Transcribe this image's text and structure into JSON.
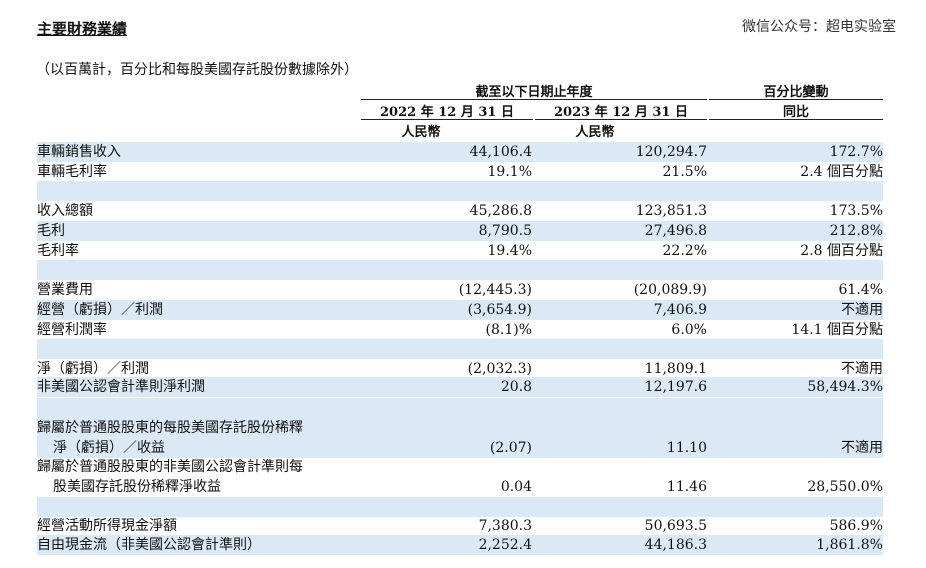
{
  "title": "主要財務業績",
  "watermark": "微信公众号：超电实验室",
  "note": "（以百萬計，百分比和每股美國存託股份數據除外）",
  "header": {
    "period": "截至以下日期止年度",
    "change": "百分比變動",
    "col1_date": "2022 年 12 月 31 日",
    "col2_date": "2023 年 12 月 31 日",
    "col3": "同比",
    "col1_unit": "人民幣",
    "col2_unit": "人民幣"
  },
  "rows": [
    {
      "label": "車輛銷售收入",
      "v1": "44,106.4",
      "v2": "120,294.7",
      "v3": "172.7%"
    },
    {
      "label": "車輛毛利率",
      "v1": "19.1%",
      "v2": "21.5%",
      "v3": "2.4 個百分點"
    },
    {
      "label": "收入總額",
      "v1": "45,286.8",
      "v2": "123,851.3",
      "v3": "173.5%"
    },
    {
      "label": "毛利",
      "v1": "8,790.5",
      "v2": "27,496.8",
      "v3": "212.8%"
    },
    {
      "label": "毛利率",
      "v1": "19.4%",
      "v2": "22.2%",
      "v3": "2.8 個百分點"
    },
    {
      "label": "營業費用",
      "v1": "(12,445.3)",
      "v2": "(20,089.9)",
      "v3": "61.4%"
    },
    {
      "label": "經營（虧損）／利潤",
      "v1": "(3,654.9)",
      "v2": "7,406.9",
      "v3": "不適用"
    },
    {
      "label": "經營利潤率",
      "v1": "(8.1)%",
      "v2": "6.0%",
      "v3": "14.1 個百分點"
    },
    {
      "label": "淨（虧損）／利潤",
      "v1": "(2,032.3)",
      "v2": "11,809.1",
      "v3": "不適用"
    },
    {
      "label": "非美國公認會計準則淨利潤",
      "v1": "20.8",
      "v2": "12,197.6",
      "v3": "58,494.3%"
    },
    {
      "label": "歸屬於普通股股東的每股美國存託股份稀釋",
      "label2": "淨（虧損）／收益",
      "v1": "(2.07)",
      "v2": "11.10",
      "v3": "不適用"
    },
    {
      "label": "歸屬於普通股股東的非美國公認會計準則每",
      "label2": "股美國存託股份稀釋淨收益",
      "v1": "0.04",
      "v2": "11.46",
      "v3": "28,550.0%"
    },
    {
      "label": "經營活動所得現金淨額",
      "v1": "7,380.3",
      "v2": "50,693.5",
      "v3": "586.9%"
    },
    {
      "label": "自由現金流（非美國公認會計準則）",
      "v1": "2,252.4",
      "v2": "44,186.3",
      "v3": "1,861.8%"
    }
  ]
}
